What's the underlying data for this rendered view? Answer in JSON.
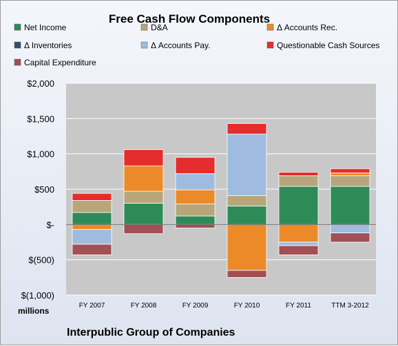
{
  "chart_data": {
    "type": "bar",
    "stacked": true,
    "title": "Free Cash Flow Components",
    "unit_label": "millions",
    "company": "Interpublic Group of Companies",
    "categories": [
      "FY 2007",
      "FY 2008",
      "FY 2009",
      "FY 2010",
      "FY 2011",
      "TTM 3-2012"
    ],
    "ylim": [
      -1000,
      2000
    ],
    "yticks": [
      {
        "value": 2000,
        "label": "$2,000"
      },
      {
        "value": 1500,
        "label": "$1,500"
      },
      {
        "value": 1000,
        "label": "$1,000"
      },
      {
        "value": 500,
        "label": "$500"
      },
      {
        "value": 0,
        "label": "$-"
      },
      {
        "value": -500,
        "label": "$(500)"
      },
      {
        "value": -1000,
        "label": "$(1,000)"
      }
    ],
    "grid": true,
    "legend_position": "top",
    "series": [
      {
        "name": "Net Income",
        "color": "#2e8b57",
        "values": [
          170,
          300,
          120,
          260,
          540,
          540
        ]
      },
      {
        "name": "D&A",
        "color": "#b8a67a",
        "values": [
          170,
          170,
          170,
          150,
          150,
          150
        ]
      },
      {
        "name": "Δ Accounts Rec.",
        "color": "#ec8a2a",
        "values": [
          -70,
          360,
          200,
          -650,
          -250,
          40
        ]
      },
      {
        "name": "Δ Inventories",
        "color": "#2f4f6f",
        "values": [
          0,
          0,
          0,
          0,
          0,
          0
        ]
      },
      {
        "name": "Δ Accounts Pay.",
        "color": "#9fbce0",
        "values": [
          -210,
          0,
          230,
          870,
          -50,
          -120
        ]
      },
      {
        "name": "Questionable Cash Sources",
        "color": "#e52d2d",
        "values": [
          100,
          230,
          230,
          150,
          50,
          60
        ]
      },
      {
        "name": "Capital Expenditure",
        "color": "#a24f55",
        "values": [
          -150,
          -130,
          -50,
          -100,
          -130,
          -130
        ]
      }
    ]
  }
}
